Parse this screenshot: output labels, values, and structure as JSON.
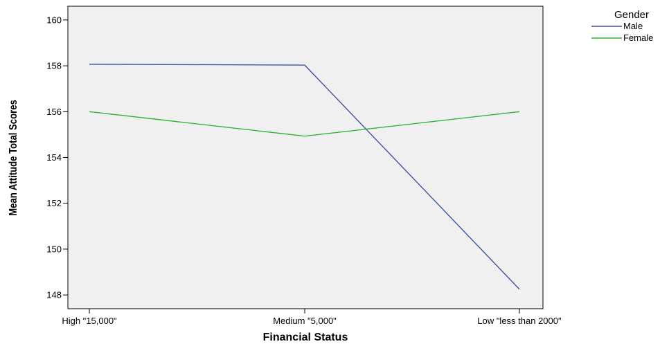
{
  "chart_data": {
    "type": "line",
    "title": "",
    "xlabel": "Financial Status",
    "ylabel": "Mean Attitude Total Scores",
    "categories": [
      "High \"15,000\"",
      "Medium \"5,000\"",
      "Low \"less than 2000\""
    ],
    "series": [
      {
        "name": "Male",
        "color": "#3f51a8",
        "values": [
          158.07,
          158.03,
          148.25
        ]
      },
      {
        "name": "Female",
        "color": "#2fb53b",
        "values": [
          156.0,
          154.93,
          156.0
        ]
      }
    ],
    "ylim": [
      147.4,
      160.6
    ],
    "yticks": [
      148,
      150,
      152,
      154,
      156,
      158,
      160
    ],
    "grid": false,
    "plot_background": "#f0f0f0",
    "legend": {
      "title": "Gender",
      "placement": "right-top"
    }
  }
}
